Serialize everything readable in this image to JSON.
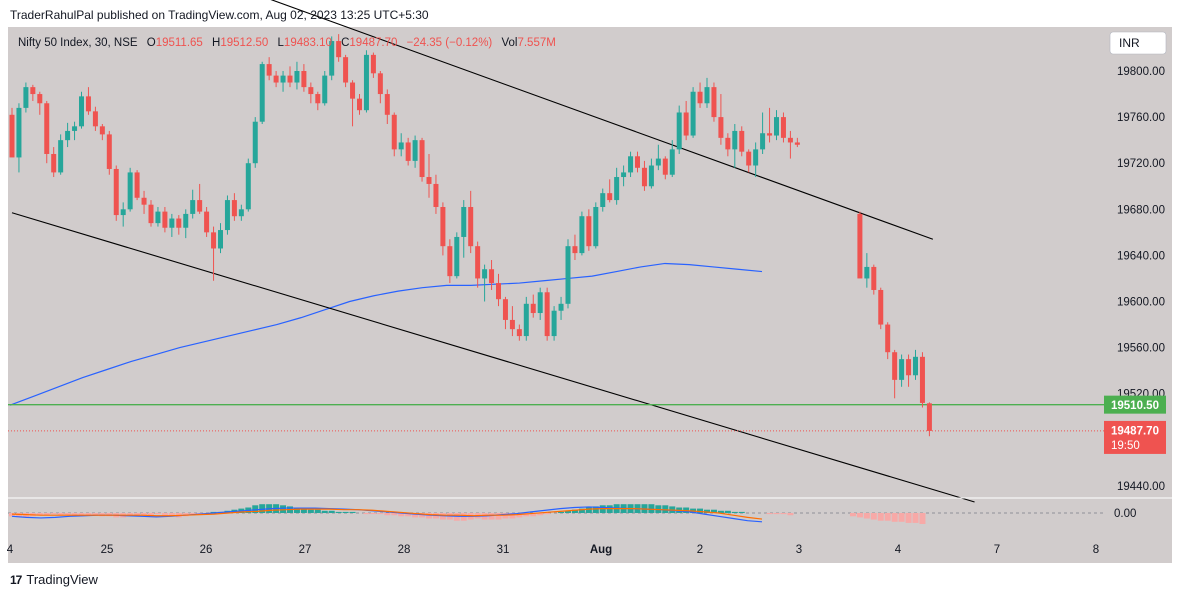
{
  "header": {
    "published": "TraderRahulPal published on TradingView.com, Aug 02, 2023 13:25 UTC+5:30"
  },
  "legend": {
    "symbol": "Nifty 50 Index, 30, NSE",
    "o_label": "O",
    "o_value": "19511.65",
    "h_label": "H",
    "h_value": "19512.50",
    "l_label": "L",
    "l_value": "19483.10",
    "c_label": "C",
    "c_value": "19487.70",
    "change": "−24.35 (−0.12%)",
    "vol_label": "Vol",
    "vol_value": "7.557M"
  },
  "currency": "INR",
  "footer": {
    "brand": "TradingView",
    "logo": "17"
  },
  "colors": {
    "up": "#26a69a",
    "down": "#ef5350",
    "ma": "#2962ff",
    "support": "#4caf50",
    "background": "#d1cccc"
  },
  "chart_data": {
    "type": "candlestick",
    "interval": "30",
    "y_ticks": [
      "19800.00",
      "19760.00",
      "19720.00",
      "19680.00",
      "19640.00",
      "19600.00",
      "19560.00",
      "19520.00",
      "19440.00"
    ],
    "ylim": [
      19410,
      19850
    ],
    "x_ticks": [
      "4",
      "25",
      "26",
      "27",
      "28",
      "31",
      "Aug",
      "2",
      "3",
      "4",
      "7",
      "8"
    ],
    "candles": [
      [
        19762,
        19768,
        19748,
        19725
      ],
      [
        19725,
        19772,
        19712,
        19768
      ],
      [
        19768,
        19790,
        19764,
        19786
      ],
      [
        19786,
        19788,
        19774,
        19780
      ],
      [
        19780,
        19782,
        19762,
        19772
      ],
      [
        19772,
        19774,
        19720,
        19728
      ],
      [
        19728,
        19734,
        19708,
        19712
      ],
      [
        19712,
        19745,
        19710,
        19740
      ],
      [
        19740,
        19755,
        19734,
        19748
      ],
      [
        19748,
        19756,
        19740,
        19752
      ],
      [
        19752,
        19782,
        19750,
        19778
      ],
      [
        19778,
        19786,
        19762,
        19765
      ],
      [
        19765,
        19769,
        19748,
        19752
      ],
      [
        19752,
        19754,
        19740,
        19745
      ],
      [
        19745,
        19748,
        19710,
        19715
      ],
      [
        19715,
        19718,
        19670,
        19675
      ],
      [
        19675,
        19686,
        19665,
        19680
      ],
      [
        19680,
        19716,
        19678,
        19712
      ],
      [
        19712,
        19714,
        19688,
        19690
      ],
      [
        19690,
        19696,
        19676,
        19684
      ],
      [
        19684,
        19688,
        19665,
        19668
      ],
      [
        19668,
        19682,
        19665,
        19678
      ],
      [
        19678,
        19682,
        19660,
        19664
      ],
      [
        19664,
        19676,
        19656,
        19672
      ],
      [
        19672,
        19675,
        19658,
        19664
      ],
      [
        19664,
        19680,
        19655,
        19676
      ],
      [
        19676,
        19697,
        19672,
        19688
      ],
      [
        19688,
        19702,
        19676,
        19678
      ],
      [
        19678,
        19682,
        19656,
        19660
      ],
      [
        19660,
        19665,
        19618,
        19646
      ],
      [
        19646,
        19668,
        19642,
        19662
      ],
      [
        19662,
        19692,
        19658,
        19688
      ],
      [
        19688,
        19694,
        19670,
        19674
      ],
      [
        19674,
        19684,
        19670,
        19680
      ],
      [
        19680,
        19724,
        19678,
        19720
      ],
      [
        19720,
        19760,
        19716,
        19756
      ],
      [
        19756,
        19808,
        19754,
        19806
      ],
      [
        19806,
        19812,
        19792,
        19796
      ],
      [
        19796,
        19800,
        19786,
        19790
      ],
      [
        19790,
        19800,
        19782,
        19796
      ],
      [
        19796,
        19804,
        19786,
        19790
      ],
      [
        19790,
        19808,
        19784,
        19800
      ],
      [
        19800,
        19806,
        19782,
        19786
      ],
      [
        19786,
        19790,
        19772,
        19780
      ],
      [
        19780,
        19782,
        19766,
        19772
      ],
      [
        19772,
        19800,
        19770,
        19796
      ],
      [
        19796,
        19830,
        19792,
        19826
      ],
      [
        19826,
        19832,
        19808,
        19812
      ],
      [
        19812,
        19814,
        19786,
        19790
      ],
      [
        19790,
        19792,
        19752,
        19776
      ],
      [
        19776,
        19780,
        19762,
        19766
      ],
      [
        19766,
        19818,
        19764,
        19814
      ],
      [
        19814,
        19816,
        19794,
        19798
      ],
      [
        19798,
        19800,
        19772,
        19780
      ],
      [
        19780,
        19784,
        19754,
        19762
      ],
      [
        19762,
        19764,
        19726,
        19732
      ],
      [
        19732,
        19746,
        19726,
        19738
      ],
      [
        19738,
        19742,
        19718,
        19722
      ],
      [
        19722,
        19744,
        19716,
        19740
      ],
      [
        19740,
        19742,
        19704,
        19708
      ],
      [
        19708,
        19728,
        19690,
        19702
      ],
      [
        19702,
        19710,
        19676,
        19682
      ],
      [
        19682,
        19686,
        19640,
        19648
      ],
      [
        19648,
        19654,
        19616,
        19622
      ],
      [
        19622,
        19660,
        19620,
        19656
      ],
      [
        19656,
        19688,
        19638,
        19682
      ],
      [
        19682,
        19696,
        19642,
        19648
      ],
      [
        19648,
        19652,
        19612,
        19620
      ],
      [
        19620,
        19632,
        19600,
        19628
      ],
      [
        19628,
        19636,
        19610,
        19616
      ],
      [
        19616,
        19624,
        19596,
        19602
      ],
      [
        19602,
        19604,
        19576,
        19584
      ],
      [
        19584,
        19596,
        19570,
        19576
      ],
      [
        19576,
        19580,
        19566,
        19570
      ],
      [
        19570,
        19604,
        19566,
        19598
      ],
      [
        19598,
        19606,
        19586,
        19590
      ],
      [
        19590,
        19612,
        19584,
        19608
      ],
      [
        19608,
        19612,
        19566,
        19570
      ],
      [
        19570,
        19596,
        19566,
        19592
      ],
      [
        19592,
        19604,
        19584,
        19598
      ],
      [
        19598,
        19654,
        19594,
        19648
      ],
      [
        19648,
        19658,
        19636,
        19642
      ],
      [
        19642,
        19678,
        19640,
        19674
      ],
      [
        19674,
        19680,
        19644,
        19648
      ],
      [
        19648,
        19686,
        19646,
        19682
      ],
      [
        19682,
        19698,
        19678,
        19694
      ],
      [
        19694,
        19706,
        19686,
        19688
      ],
      [
        19688,
        19716,
        19684,
        19708
      ],
      [
        19708,
        19718,
        19700,
        19712
      ],
      [
        19712,
        19730,
        19708,
        19726
      ],
      [
        19726,
        19730,
        19712,
        19716
      ],
      [
        19716,
        19722,
        19696,
        19700
      ],
      [
        19700,
        19724,
        19698,
        19718
      ],
      [
        19718,
        19736,
        19714,
        19724
      ],
      [
        19724,
        19726,
        19706,
        19710
      ],
      [
        19710,
        19740,
        19708,
        19732
      ],
      [
        19732,
        19770,
        19728,
        19764
      ],
      [
        19764,
        19774,
        19740,
        19744
      ],
      [
        19744,
        19786,
        19742,
        19782
      ],
      [
        19782,
        19790,
        19768,
        19772
      ],
      [
        19772,
        19794,
        19768,
        19786
      ],
      [
        19786,
        19790,
        19756,
        19760
      ],
      [
        19760,
        19780,
        19736,
        19742
      ],
      [
        19742,
        19746,
        19726,
        19732
      ],
      [
        19732,
        19754,
        19716,
        19748
      ],
      [
        19748,
        19752,
        19726,
        19730
      ],
      [
        19730,
        19732,
        19712,
        19718
      ],
      [
        19718,
        19738,
        19708,
        19732
      ],
      [
        19732,
        19764,
        19728,
        19746
      ],
      [
        19746,
        19768,
        19738,
        19744
      ],
      [
        19744,
        19766,
        19740,
        19760
      ],
      [
        19760,
        19764,
        19738,
        19742
      ],
      [
        19742,
        19748,
        19724,
        19738
      ],
      [
        19738,
        19742,
        19734,
        19736
      ],
      null,
      null,
      null,
      null,
      null,
      null,
      null,
      null,
      [
        19676,
        19678,
        19640,
        19620
      ],
      [
        19620,
        19642,
        19612,
        19630
      ],
      [
        19630,
        19632,
        19606,
        19610
      ],
      [
        19610,
        19612,
        19576,
        19580
      ],
      [
        19580,
        19582,
        19550,
        19556
      ],
      [
        19556,
        19558,
        19516,
        19532
      ],
      [
        19532,
        19554,
        19526,
        19550
      ],
      [
        19550,
        19554,
        19526,
        19536
      ],
      [
        19536,
        19558,
        19532,
        19552
      ],
      [
        19552,
        19556,
        19508,
        19512
      ],
      [
        19511.65,
        19512.5,
        19483.1,
        19487.7
      ]
    ],
    "ma_200": [
      19510,
      19518,
      19526,
      19534,
      19541,
      19548,
      19554,
      19560,
      19565,
      19570,
      19575,
      19580,
      19586,
      19593,
      19600,
      19605,
      19609,
      19612,
      19614,
      19614,
      19615,
      19616,
      19618,
      19620,
      19622,
      19626,
      19630,
      19633,
      19632,
      19630,
      19628,
      19626
    ],
    "channel_upper": {
      "start": [
        34.5,
        19868
      ],
      "end": [
        132.5,
        19654
      ]
    },
    "channel_lower": {
      "start": [
        0,
        19677
      ],
      "end": [
        138.5,
        19426
      ]
    },
    "support_level": 19510.5,
    "support_label": "19510.50",
    "last_price": 19487.7,
    "last_price_label": "19487.70",
    "countdown": "19:50",
    "macd": {
      "zero_label": "0.00",
      "histogram": [
        -3,
        -4,
        -4,
        -3,
        -2,
        -2,
        -1,
        -2,
        -2,
        -3,
        -3,
        -2,
        -2,
        -3,
        -3,
        -4,
        -4,
        -3,
        -3,
        -2,
        -2,
        -1,
        -2,
        -3,
        -4,
        -3,
        -2,
        -1,
        0,
        1,
        1,
        2,
        3,
        4,
        5,
        7,
        8,
        8,
        8,
        7,
        6,
        5,
        4,
        3,
        3,
        2,
        2,
        1,
        1,
        1,
        0,
        -1,
        -1,
        -1,
        -2,
        -2,
        -3,
        -3,
        -4,
        -4,
        -5,
        -5,
        -6,
        -6,
        -7,
        -7,
        -6,
        -5,
        -6,
        -6,
        -6,
        -5,
        -5,
        -4,
        -3,
        -3,
        -2,
        -1,
        0,
        1,
        2,
        3,
        4,
        5,
        6,
        7,
        7,
        8,
        8,
        8,
        8,
        8,
        8,
        7,
        7,
        6,
        5,
        5,
        4,
        4,
        3,
        3,
        2,
        2,
        1,
        1,
        0,
        0,
        0,
        -1,
        -1,
        -1,
        -2,
        0,
        0,
        0,
        0,
        0,
        0,
        0,
        0,
        -3,
        -4,
        -5,
        -6,
        -7,
        -7,
        -8,
        -8,
        -9,
        -9,
        -10
      ],
      "macd_line": [
        -6,
        -8,
        -9,
        -8,
        -6,
        -5,
        -4,
        -4,
        -5,
        -6,
        -7,
        -6,
        -4,
        -2,
        0,
        2,
        4,
        6,
        8,
        9,
        9,
        9,
        8,
        7,
        6,
        4,
        2,
        0,
        -2,
        -4,
        -5,
        -6,
        -6,
        -5,
        -3,
        -1,
        2,
        5,
        8,
        10,
        11,
        10,
        9,
        8,
        7,
        6,
        4,
        2,
        -2,
        -6,
        -10,
        -14,
        -16
      ],
      "signal_line": [
        -2,
        -3,
        -4,
        -4,
        -4,
        -4,
        -4,
        -4,
        -4,
        -4,
        -5,
        -5,
        -4,
        -3,
        -2,
        0,
        2,
        3,
        5,
        6,
        7,
        7,
        7,
        6,
        6,
        5,
        3,
        1,
        -1,
        -3,
        -4,
        -4,
        -5,
        -4,
        -4,
        -3,
        -1,
        1,
        3,
        5,
        7,
        8,
        8,
        8,
        7,
        6,
        5,
        4,
        2,
        0,
        -4,
        -8,
        -11
      ]
    }
  }
}
